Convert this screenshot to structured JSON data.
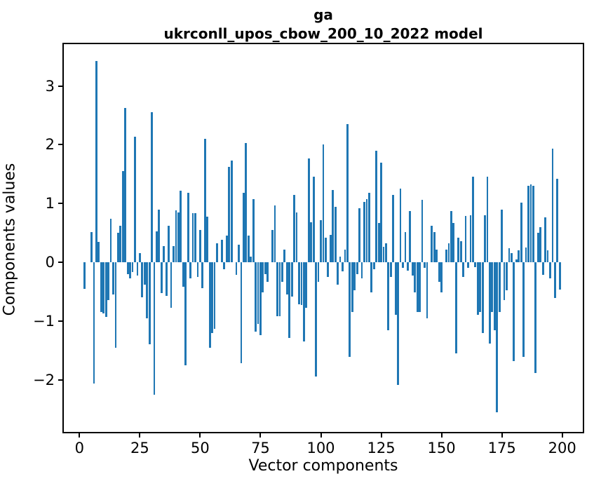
{
  "title": {
    "line1": "ga",
    "line2": "ukrconll_upos_cbow_200_10_2022 model"
  },
  "axes": {
    "xlabel": "Vector components",
    "ylabel": "Components values",
    "x_tick_labels": [
      "0",
      "25",
      "50",
      "75",
      "100",
      "125",
      "150",
      "175",
      "200"
    ],
    "x_tick_values": [
      0,
      25,
      50,
      75,
      100,
      125,
      150,
      175,
      200
    ],
    "y_tick_labels": [
      "3",
      "2",
      "1",
      "0",
      "−1",
      "−2"
    ],
    "y_tick_values": [
      3,
      2,
      1,
      0,
      -1,
      -2
    ]
  },
  "chart_data": {
    "type": "bar",
    "title": "ga\nukrconll_upos_cbow_200_10_2022 model",
    "xlabel": "Vector components",
    "ylabel": "Components values",
    "bar_color": "#1f77b4",
    "grid": false,
    "legend": false,
    "xlim": [
      -7,
      209
    ],
    "ylim": [
      -2.9,
      3.72
    ],
    "x_start": 0,
    "values": [
      0,
      0,
      -0.45,
      0,
      0,
      0.51,
      -2.06,
      3.42,
      0.35,
      -0.85,
      -0.87,
      -0.93,
      -0.65,
      0.74,
      -0.55,
      -1.45,
      0.5,
      0.62,
      1.55,
      2.62,
      -0.2,
      -0.27,
      -0.17,
      2.14,
      -0.23,
      0.15,
      -0.6,
      -0.38,
      -0.95,
      -1.4,
      2.55,
      -2.26,
      0.52,
      0.9,
      -0.53,
      0.28,
      -0.57,
      0.62,
      -0.77,
      0.28,
      0.88,
      0.85,
      1.22,
      -0.42,
      -1.76,
      1.18,
      -0.27,
      0.83,
      0.83,
      -0.25,
      0.55,
      -0.44,
      2.1,
      0.78,
      -1.45,
      -1.2,
      -1.13,
      0.32,
      0,
      0.38,
      -0.12,
      0.45,
      1.62,
      1.73,
      0,
      -0.22,
      0.3,
      -1.72,
      1.18,
      2.03,
      0.45,
      0.1,
      1.07,
      -1.18,
      -1.05,
      -1.24,
      -0.51,
      -0.2,
      -0.33,
      0,
      0.55,
      0.97,
      -0.92,
      -0.92,
      -0.33,
      0.22,
      -0.55,
      -1.29,
      -0.59,
      1.15,
      0.85,
      -0.72,
      -0.73,
      -1.35,
      -0.77,
      1.77,
      0.68,
      1.45,
      -1.94,
      -0.33,
      0.72,
      2.0,
      0.42,
      -0.25,
      0.47,
      1.23,
      0.94,
      -0.38,
      0.1,
      -0.15,
      0.22,
      2.35,
      -1.61,
      -0.85,
      -0.48,
      -0.2,
      0.92,
      -0.27,
      1.03,
      1.07,
      1.18,
      -0.51,
      -0.12,
      1.9,
      0.67,
      1.69,
      0.26,
      0.32,
      -1.16,
      -0.25,
      1.15,
      -0.9,
      -2.09,
      1.25,
      -0.1,
      0.51,
      -0.14,
      0.87,
      -0.23,
      -0.51,
      -0.85,
      -0.85,
      1.06,
      -0.1,
      -0.96,
      0,
      0.62,
      0.51,
      0.22,
      -0.33,
      -0.51,
      0,
      0.21,
      0.32,
      0.87,
      0.67,
      -1.55,
      0.42,
      0.36,
      -0.25,
      0.79,
      -0.1,
      0.8,
      1.45,
      -0.08,
      -0.9,
      -0.85,
      -1.2,
      0.8,
      1.46,
      -1.39,
      -0.85,
      -1.16,
      -2.55,
      -0.85,
      0.9,
      -0.64,
      -0.48,
      0.24,
      0.15,
      -1.68,
      0.05,
      0.2,
      1.02,
      -1.61,
      0.25,
      1.3,
      1.32,
      1.3,
      -1.89,
      0.5,
      0.6,
      -0.22,
      0.76,
      0.2,
      -0.27,
      1.93,
      -0.61,
      1.42,
      -0.46
    ]
  }
}
